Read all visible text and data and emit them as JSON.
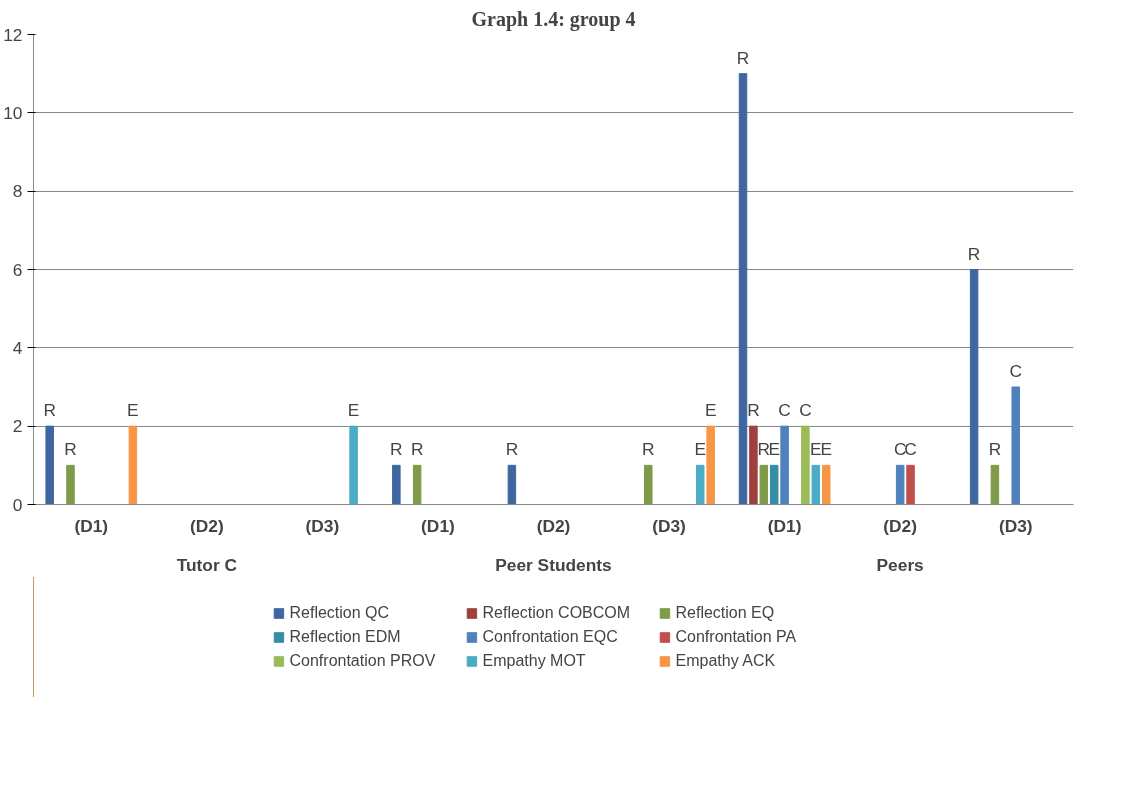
{
  "chart_data": {
    "type": "bar",
    "title": "Graph 1.4: group 4",
    "categories": [
      "(D1)",
      "(D2)",
      "(D3)",
      "(D1)",
      "(D2)",
      "(D3)",
      "(D1)",
      "(D2)",
      "(D3)"
    ],
    "annotations": [
      "Tutor C",
      "Peer Students",
      "Peers"
    ],
    "series": [
      {
        "name": "Reflection QC",
        "color": "#4066a0",
        "values": [
          2,
          null,
          null,
          1,
          1,
          null,
          11,
          null,
          6
        ],
        "value_labels": [
          "R",
          null,
          null,
          "R",
          "R",
          null,
          "R",
          null,
          "R"
        ]
      },
      {
        "name": "Reflection COBCOM",
        "color": "#a0403d",
        "values": [
          null,
          null,
          null,
          null,
          null,
          null,
          2,
          null,
          null
        ],
        "value_labels": [
          null,
          null,
          null,
          null,
          null,
          null,
          "R",
          null,
          null
        ]
      },
      {
        "name": "Reflection EQ",
        "color": "#7f9a48",
        "values": [
          1,
          null,
          null,
          1,
          null,
          1,
          1,
          null,
          1
        ],
        "value_labels": [
          "R",
          null,
          null,
          "R",
          null,
          "R",
          "R",
          null,
          "R"
        ]
      },
      {
        "name": "Reflection EDM",
        "color": "#348ea4",
        "values": [
          null,
          null,
          null,
          null,
          null,
          null,
          1,
          null,
          null
        ],
        "value_labels": [
          null,
          null,
          null,
          null,
          null,
          null,
          "E",
          null,
          null
        ]
      },
      {
        "name": "Confrontation EQC",
        "color": "#4f81bd",
        "values": [
          null,
          null,
          null,
          null,
          null,
          null,
          2,
          1,
          3
        ],
        "value_labels": [
          null,
          null,
          null,
          null,
          null,
          null,
          "C",
          "C",
          "C"
        ]
      },
      {
        "name": "Confrontation PA",
        "color": "#c0504d",
        "values": [
          null,
          null,
          null,
          null,
          null,
          null,
          null,
          1,
          null
        ],
        "value_labels": [
          null,
          null,
          null,
          null,
          null,
          null,
          null,
          "C",
          null
        ]
      },
      {
        "name": "Confrontation PROV",
        "color": "#9bbb59",
        "values": [
          null,
          null,
          null,
          null,
          null,
          null,
          2,
          null,
          null
        ],
        "value_labels": [
          null,
          null,
          null,
          null,
          null,
          null,
          "C",
          null,
          null
        ]
      },
      {
        "name": "Empathy MOT",
        "color": "#4bacc6",
        "values": [
          null,
          null,
          2,
          null,
          null,
          1,
          1,
          null,
          null
        ],
        "value_labels": [
          null,
          null,
          "E",
          null,
          null,
          "E",
          "E",
          null,
          null
        ]
      },
      {
        "name": "Empathy ACK",
        "color": "#f79646",
        "values": [
          2,
          null,
          null,
          null,
          null,
          2,
          1,
          null,
          null
        ],
        "value_labels": [
          "E",
          null,
          null,
          null,
          null,
          "E",
          "E",
          null,
          null
        ]
      }
    ],
    "ylim": [
      0,
      12
    ],
    "yticks": [
      0,
      2,
      4,
      6,
      8,
      10,
      12
    ],
    "grid": "y",
    "legend": "bottom"
  }
}
